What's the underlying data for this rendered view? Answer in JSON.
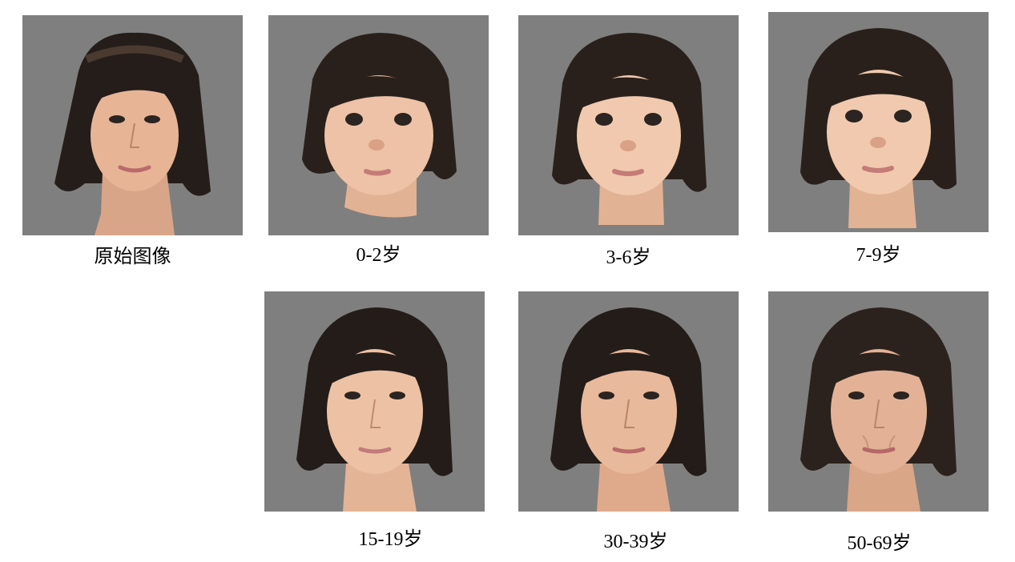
{
  "panels": [
    {
      "caption": "原始图像",
      "stage": "original"
    },
    {
      "caption": "0-2岁",
      "stage": "infant"
    },
    {
      "caption": "3-6岁",
      "stage": "child"
    },
    {
      "caption": "7-9岁",
      "stage": "child"
    },
    {
      "caption": "15-19岁",
      "stage": "teen"
    },
    {
      "caption": "30-39岁",
      "stage": "adult"
    },
    {
      "caption": "50-69岁",
      "stage": "older"
    }
  ],
  "colors": {
    "background": "#ffffff",
    "panel_background": "#7f7f7f",
    "hair": "#241d1a",
    "skin": "#e7b496"
  }
}
